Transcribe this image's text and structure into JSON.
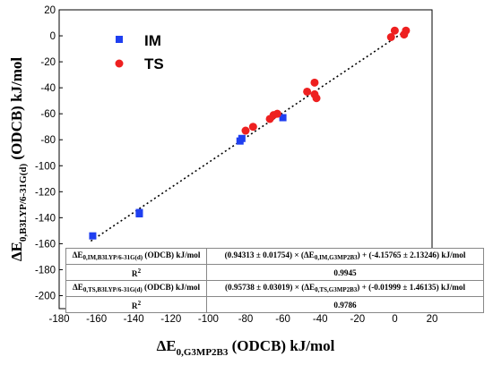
{
  "chart_data": {
    "type": "scatter",
    "xlim": [
      -180,
      20
    ],
    "ylim": [
      -210,
      20
    ],
    "x_ticks": [
      "-180",
      "-160",
      "-140",
      "-120",
      "-100",
      "-80",
      "-60",
      "-40",
      "-20",
      "0",
      "20"
    ],
    "y_ticks": [
      "20",
      "0",
      "-20",
      "-40",
      "-60",
      "-80",
      "-100",
      "-120",
      "-140",
      "-160",
      "-180",
      "-200"
    ],
    "xlabel": {
      "prefix": "ΔE",
      "sub": "0,G3MP2B3",
      "suffix": " (ODCB) kJ/mol"
    },
    "ylabel": {
      "prefix": "ΔE",
      "sub": "0,B3LYP/6-31G(d)",
      "suffix": " (ODCB) kJ/mol"
    },
    "legend_position": "top-left",
    "series": [
      {
        "name": "IM",
        "marker": "square",
        "color": "#1f3ff0",
        "points": [
          [
            -162,
            -154
          ],
          [
            -137,
            -137
          ],
          [
            -137,
            -136
          ],
          [
            -83,
            -81
          ],
          [
            -82,
            -79
          ],
          [
            -60,
            -63
          ]
        ]
      },
      {
        "name": "TS",
        "marker": "circle",
        "color": "#ee2020",
        "points": [
          [
            -80,
            -73
          ],
          [
            -76,
            -70
          ],
          [
            -67,
            -64
          ],
          [
            -65,
            -61
          ],
          [
            -63,
            -60
          ],
          [
            -47,
            -43
          ],
          [
            -43,
            -36
          ],
          [
            -43,
            -45
          ],
          [
            -42,
            -48
          ],
          [
            -2,
            -1
          ],
          [
            0,
            4
          ],
          [
            5,
            1
          ],
          [
            6,
            4
          ]
        ]
      }
    ],
    "trendline": {
      "style": "dotted",
      "color": "#000000",
      "from": [
        -163,
        -158
      ],
      "to": [
        7,
        5
      ]
    },
    "fit_table": {
      "rows": [
        {
          "label": {
            "prefix": "ΔE",
            "sub": "0,IM,B3LYP/6-31G(d)",
            "suffix": " (ODCB) kJ/mol"
          },
          "equation": {
            "p1": "(0.94313 ± 0.01754) × (ΔE",
            "sub": "0,IM,G3MP2B3",
            "p2": ") + (-4.15765 ± 2.13246) kJ/mol"
          }
        },
        {
          "label": {
            "prefix": "R",
            "sup": "2",
            "suffix": ""
          },
          "value": "0.9945"
        },
        {
          "label": {
            "prefix": "ΔE",
            "sub": "0,TS,B3LYP/6-31G(d)",
            "suffix": " (ODCB) kJ/mol"
          },
          "equation": {
            "p1": "(0.95738 ± 0.03019) × (ΔE",
            "sub": "0,TS,G3MP2B3",
            "p2": ") + (-0.01999 ± 1.46135) kJ/mol"
          }
        },
        {
          "label": {
            "prefix": "R",
            "sup": "2",
            "suffix": ""
          },
          "value": "0.9786"
        }
      ]
    }
  }
}
